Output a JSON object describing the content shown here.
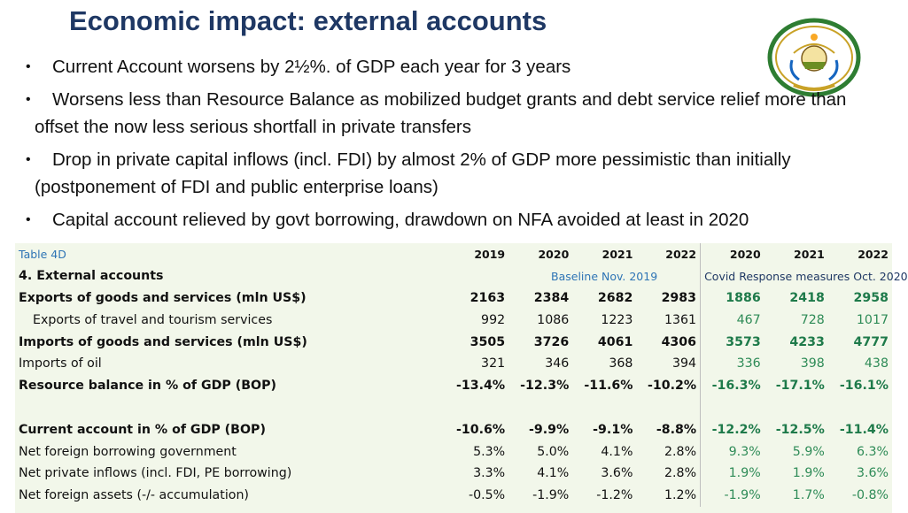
{
  "title": "Economic impact: external accounts",
  "bullets": [
    "Current Account worsens by 2½%. of GDP each year for 3 years",
    "Worsens less than Resource Balance as mobilized budget grants and debt service relief more than offset the now less serious shortfall in private transfers",
    "Drop in private capital inflows (incl. FDI) by almost 2% of GDP more pessimistic than initially (postponement of FDI and public enterprise loans)",
    "Capital account relieved by govt borrowing, drawdown on NFA avoided at least in 2020"
  ],
  "colors": {
    "title": "#1f3864",
    "table_bg": "#f2f7ea",
    "caption": "#2e74b5",
    "green": "#2e8b57"
  },
  "table": {
    "caption": "Table 4D",
    "years": [
      "2019",
      "2020",
      "2021",
      "2022",
      "2020",
      "2021",
      "2022"
    ],
    "section": "4. External accounts",
    "baseline_label": "Baseline Nov. 2019",
    "covid_label": "Covid Response measures Oct. 2020",
    "rows": [
      {
        "label": "Exports of goods and services (mln US$)",
        "values": [
          "2163",
          "2384",
          "2682",
          "2983",
          "1886",
          "2418",
          "2958"
        ]
      },
      {
        "label": "Exports of travel and tourism services",
        "values": [
          "992",
          "1086",
          "1223",
          "1361",
          "467",
          "728",
          "1017"
        ]
      },
      {
        "label": "Imports of goods and services (mln US$)",
        "values": [
          "3505",
          "3726",
          "4061",
          "4306",
          "3573",
          "4233",
          "4777"
        ]
      },
      {
        "label": "Imports of oil",
        "values": [
          "321",
          "346",
          "368",
          "394",
          "336",
          "398",
          "438"
        ]
      },
      {
        "label": "Resource balance in % of GDP (BOP)",
        "values": [
          "-13.4%",
          "-12.3%",
          "-11.6%",
          "-10.2%",
          "-16.3%",
          "-17.1%",
          "-16.1%"
        ]
      },
      {
        "label": "Current account in % of GDP (BOP)",
        "values": [
          "-10.6%",
          "-9.9%",
          "-9.1%",
          "-8.8%",
          "-12.2%",
          "-12.5%",
          "-11.4%"
        ]
      },
      {
        "label": "Net foreign borrowing government",
        "values": [
          "5.3%",
          "5.0%",
          "4.1%",
          "2.8%",
          "9.3%",
          "5.9%",
          "6.3%"
        ]
      },
      {
        "label": "Net private inflows (incl. FDI, PE borrowing)",
        "values": [
          "3.3%",
          "4.1%",
          "3.6%",
          "2.8%",
          "1.9%",
          "1.9%",
          "3.6%"
        ]
      },
      {
        "label": "Net foreign assets (-/- accumulation)",
        "values": [
          "-0.5%",
          "-1.9%",
          "-1.2%",
          "1.2%",
          "-1.9%",
          "1.7%",
          "-0.8%"
        ]
      }
    ]
  }
}
